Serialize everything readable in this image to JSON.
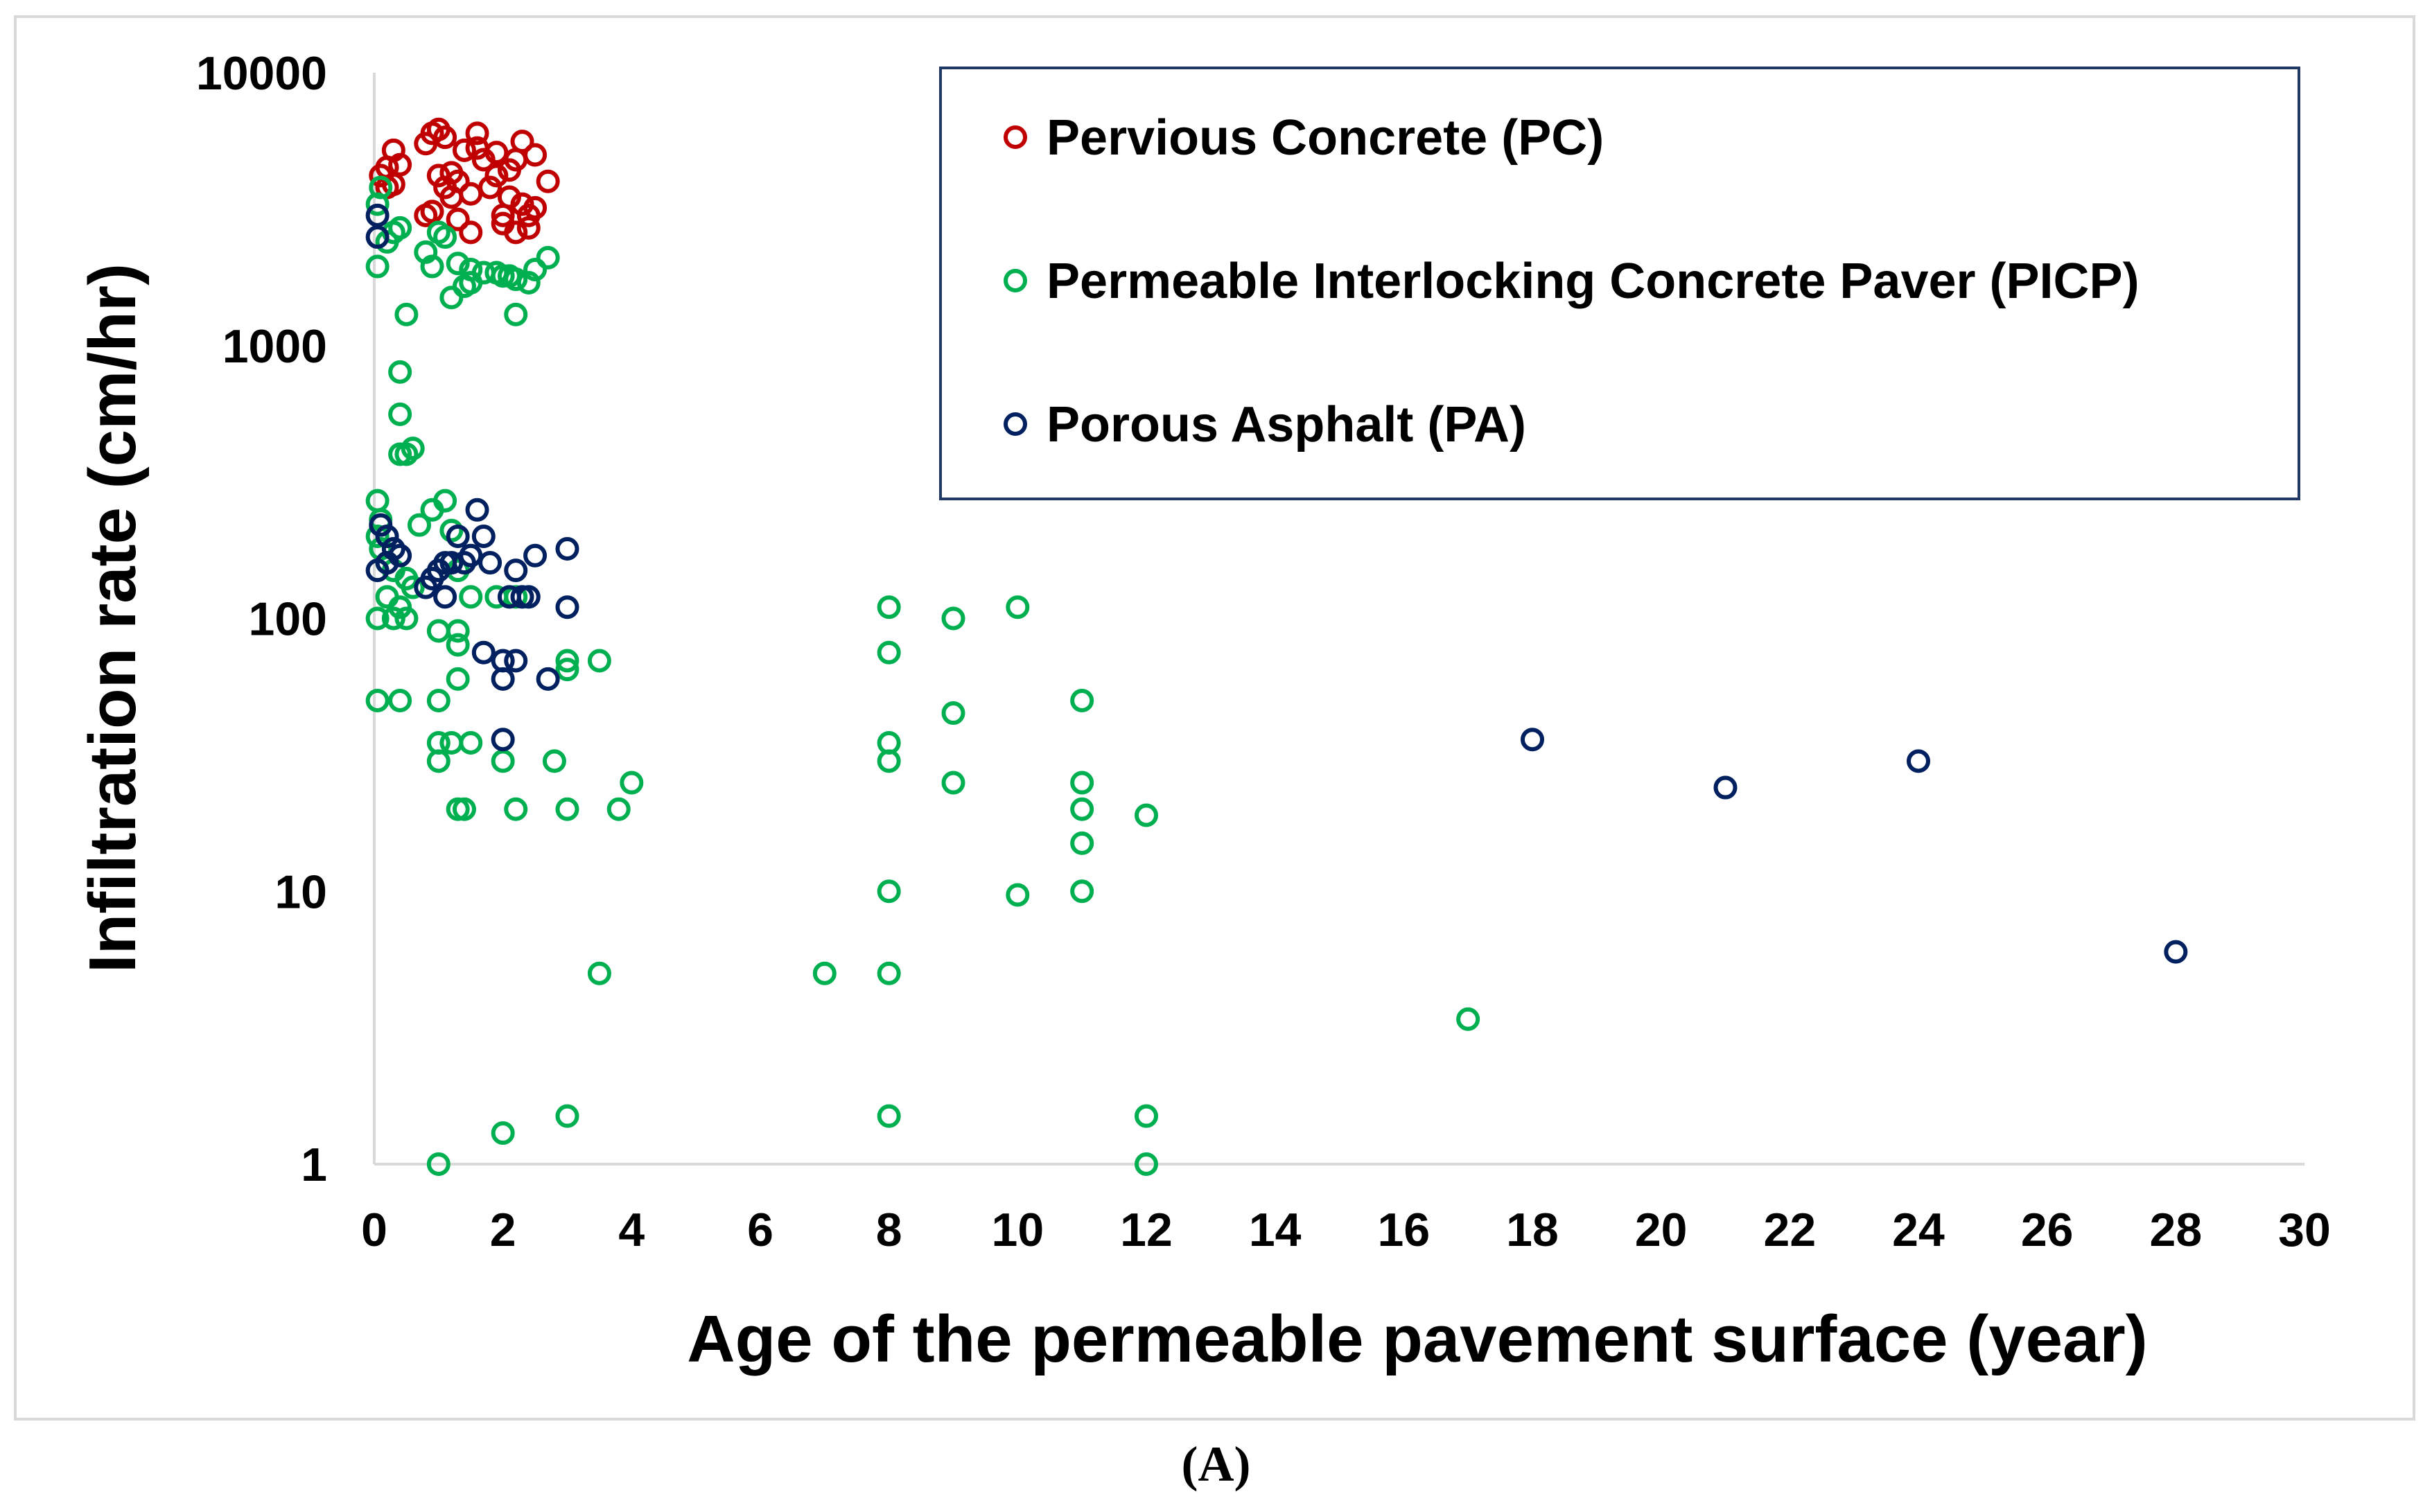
{
  "chart_data": {
    "type": "scatter",
    "xlabel": "Age of the permeable pavement surface (year)",
    "ylabel": "Infiltration rate (cm/hr)",
    "xlim": [
      0,
      30
    ],
    "ylim": [
      1,
      10000
    ],
    "yscale": "log",
    "x_ticks": [
      "0",
      "2",
      "4",
      "6",
      "8",
      "10",
      "12",
      "14",
      "16",
      "18",
      "20",
      "22",
      "24",
      "26",
      "28",
      "30"
    ],
    "y_ticks": [
      "1",
      "10",
      "100",
      "1000",
      "10000"
    ],
    "grid": false,
    "legend_position": "top-right",
    "series": [
      {
        "name": "Pervious Concrete (PC)",
        "color": "#c00000",
        "marker": "open-circle",
        "points": [
          [
            0.1,
            4200
          ],
          [
            0.2,
            4500
          ],
          [
            0.3,
            5200
          ],
          [
            0.4,
            4600
          ],
          [
            0.2,
            3800
          ],
          [
            0.3,
            3900
          ],
          [
            0.8,
            3000
          ],
          [
            0.8,
            5500
          ],
          [
            0.9,
            6000
          ],
          [
            1.0,
            6200
          ],
          [
            1.0,
            4200
          ],
          [
            1.1,
            5800
          ],
          [
            1.1,
            3800
          ],
          [
            1.2,
            3500
          ],
          [
            1.3,
            4000
          ],
          [
            1.3,
            2900
          ],
          [
            1.4,
            5200
          ],
          [
            1.5,
            2600
          ],
          [
            1.6,
            6000
          ],
          [
            1.6,
            5300
          ],
          [
            1.7,
            4800
          ],
          [
            1.8,
            3800
          ],
          [
            1.9,
            5100
          ],
          [
            1.9,
            4200
          ],
          [
            2.0,
            3000
          ],
          [
            2.1,
            4400
          ],
          [
            2.1,
            3500
          ],
          [
            2.2,
            2600
          ],
          [
            2.2,
            4800
          ],
          [
            2.3,
            3300
          ],
          [
            2.3,
            5600
          ],
          [
            2.4,
            3000
          ],
          [
            2.5,
            3200
          ],
          [
            2.5,
            5000
          ],
          [
            2.7,
            4000
          ],
          [
            2.4,
            2700
          ],
          [
            1.2,
            4300
          ],
          [
            1.5,
            3600
          ],
          [
            0.9,
            3100
          ],
          [
            2.0,
            2800
          ]
        ]
      },
      {
        "name": "Permeable Interlocking Concrete Paver (PICP)",
        "color": "#00b050",
        "marker": "open-circle",
        "points": [
          [
            0.05,
            3300
          ],
          [
            0.1,
            3800
          ],
          [
            0.2,
            2400
          ],
          [
            0.3,
            2600
          ],
          [
            0.4,
            2700
          ],
          [
            0.05,
            1950
          ],
          [
            0.5,
            1300
          ],
          [
            0.8,
            2200
          ],
          [
            0.9,
            1950
          ],
          [
            1.0,
            2600
          ],
          [
            1.1,
            2500
          ],
          [
            1.2,
            1500
          ],
          [
            1.3,
            2000
          ],
          [
            1.4,
            1650
          ],
          [
            1.5,
            1900
          ],
          [
            1.5,
            1700
          ],
          [
            1.7,
            1850
          ],
          [
            1.9,
            1850
          ],
          [
            2.0,
            1800
          ],
          [
            2.1,
            1800
          ],
          [
            2.2,
            1750
          ],
          [
            2.2,
            1300
          ],
          [
            2.4,
            1700
          ],
          [
            2.5,
            1900
          ],
          [
            2.7,
            2100
          ],
          [
            0.4,
            800
          ],
          [
            0.4,
            560
          ],
          [
            0.4,
            400
          ],
          [
            0.6,
            420
          ],
          [
            0.5,
            400
          ],
          [
            0.05,
            270
          ],
          [
            0.1,
            230
          ],
          [
            0.05,
            200
          ],
          [
            0.1,
            180
          ],
          [
            0.2,
            160
          ],
          [
            0.3,
            150
          ],
          [
            0.7,
            220
          ],
          [
            0.9,
            250
          ],
          [
            1.1,
            270
          ],
          [
            1.2,
            210
          ],
          [
            1.3,
            150
          ],
          [
            1.5,
            120
          ],
          [
            1.9,
            120
          ],
          [
            0.2,
            120
          ],
          [
            0.4,
            110
          ],
          [
            0.5,
            100
          ],
          [
            0.05,
            100
          ],
          [
            0.3,
            100
          ],
          [
            0.5,
            140
          ],
          [
            0.6,
            130
          ],
          [
            1.0,
            90
          ],
          [
            1.3,
            90
          ],
          [
            1.3,
            80
          ],
          [
            2.2,
            120
          ],
          [
            3.0,
            70
          ],
          [
            3.0,
            65
          ],
          [
            3.5,
            70
          ],
          [
            1.3,
            60
          ],
          [
            0.05,
            50
          ],
          [
            0.4,
            50
          ],
          [
            1.0,
            50
          ],
          [
            1.0,
            35
          ],
          [
            1.2,
            35
          ],
          [
            1.5,
            35
          ],
          [
            1.0,
            30
          ],
          [
            2.0,
            30
          ],
          [
            2.8,
            30
          ],
          [
            4.0,
            25
          ],
          [
            1.3,
            20
          ],
          [
            1.4,
            20
          ],
          [
            2.2,
            20
          ],
          [
            3.0,
            20
          ],
          [
            3.8,
            20
          ],
          [
            3.5,
            5
          ],
          [
            1.0,
            1
          ],
          [
            2.0,
            1.3
          ],
          [
            3.0,
            1.5
          ],
          [
            7.0,
            5
          ],
          [
            8.0,
            110
          ],
          [
            8.0,
            75
          ],
          [
            8.0,
            35
          ],
          [
            8.0,
            30
          ],
          [
            8.0,
            10
          ],
          [
            8.0,
            5
          ],
          [
            8.0,
            1.5
          ],
          [
            9.0,
            100
          ],
          [
            9.0,
            45
          ],
          [
            9.0,
            25
          ],
          [
            10.0,
            110
          ],
          [
            10.0,
            9.7
          ],
          [
            11.0,
            50
          ],
          [
            11.0,
            25
          ],
          [
            11.0,
            20
          ],
          [
            11.0,
            15
          ],
          [
            11.0,
            10
          ],
          [
            12.0,
            19
          ],
          [
            12.0,
            1.5
          ],
          [
            12.0,
            1.0
          ],
          [
            17.0,
            3.4
          ]
        ]
      },
      {
        "name": "Porous Asphalt (PA)",
        "color": "#002060",
        "marker": "open-circle",
        "points": [
          [
            0.05,
            3000
          ],
          [
            0.05,
            2500
          ],
          [
            0.1,
            220
          ],
          [
            0.2,
            200
          ],
          [
            0.3,
            180
          ],
          [
            0.4,
            170
          ],
          [
            0.05,
            150
          ],
          [
            0.2,
            160
          ],
          [
            0.8,
            130
          ],
          [
            0.9,
            140
          ],
          [
            1.0,
            150
          ],
          [
            1.1,
            160
          ],
          [
            1.1,
            120
          ],
          [
            1.2,
            160
          ],
          [
            1.3,
            200
          ],
          [
            1.4,
            160
          ],
          [
            1.5,
            170
          ],
          [
            1.6,
            250
          ],
          [
            1.7,
            200
          ],
          [
            1.8,
            160
          ],
          [
            2.1,
            120
          ],
          [
            2.3,
            120
          ],
          [
            2.4,
            120
          ],
          [
            2.2,
            150
          ],
          [
            2.5,
            170
          ],
          [
            3.0,
            180
          ],
          [
            3.0,
            110
          ],
          [
            1.7,
            75
          ],
          [
            2.0,
            70
          ],
          [
            2.2,
            70
          ],
          [
            2.0,
            60
          ],
          [
            2.7,
            60
          ],
          [
            2.0,
            36
          ],
          [
            18.0,
            36
          ],
          [
            21.0,
            24
          ],
          [
            24.0,
            30
          ],
          [
            28.0,
            6
          ]
        ]
      }
    ]
  },
  "panel_label": "(A)"
}
